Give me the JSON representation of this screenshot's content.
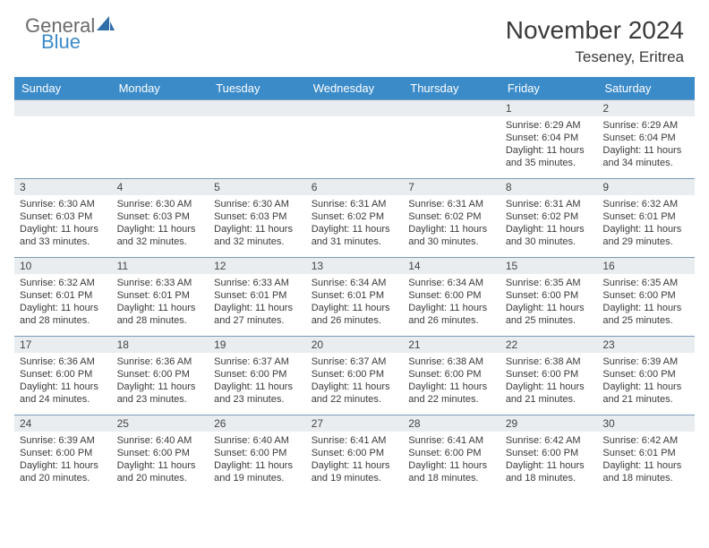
{
  "logo": {
    "top": "General",
    "bottom": "Blue",
    "sail_color": "#2f6ea8"
  },
  "title": "November 2024",
  "location": "Teseney, Eritrea",
  "day_headers": [
    "Sunday",
    "Monday",
    "Tuesday",
    "Wednesday",
    "Thursday",
    "Friday",
    "Saturday"
  ],
  "header_bg": "#3b8bc9",
  "weeks": [
    {
      "nums": [
        "",
        "",
        "",
        "",
        "",
        "1",
        "2"
      ],
      "cells": [
        null,
        null,
        null,
        null,
        null,
        {
          "sr": "6:29 AM",
          "ss": "6:04 PM",
          "dl": "11 hours and 35 minutes."
        },
        {
          "sr": "6:29 AM",
          "ss": "6:04 PM",
          "dl": "11 hours and 34 minutes."
        }
      ]
    },
    {
      "nums": [
        "3",
        "4",
        "5",
        "6",
        "7",
        "8",
        "9"
      ],
      "cells": [
        {
          "sr": "6:30 AM",
          "ss": "6:03 PM",
          "dl": "11 hours and 33 minutes."
        },
        {
          "sr": "6:30 AM",
          "ss": "6:03 PM",
          "dl": "11 hours and 32 minutes."
        },
        {
          "sr": "6:30 AM",
          "ss": "6:03 PM",
          "dl": "11 hours and 32 minutes."
        },
        {
          "sr": "6:31 AM",
          "ss": "6:02 PM",
          "dl": "11 hours and 31 minutes."
        },
        {
          "sr": "6:31 AM",
          "ss": "6:02 PM",
          "dl": "11 hours and 30 minutes."
        },
        {
          "sr": "6:31 AM",
          "ss": "6:02 PM",
          "dl": "11 hours and 30 minutes."
        },
        {
          "sr": "6:32 AM",
          "ss": "6:01 PM",
          "dl": "11 hours and 29 minutes."
        }
      ]
    },
    {
      "nums": [
        "10",
        "11",
        "12",
        "13",
        "14",
        "15",
        "16"
      ],
      "cells": [
        {
          "sr": "6:32 AM",
          "ss": "6:01 PM",
          "dl": "11 hours and 28 minutes."
        },
        {
          "sr": "6:33 AM",
          "ss": "6:01 PM",
          "dl": "11 hours and 28 minutes."
        },
        {
          "sr": "6:33 AM",
          "ss": "6:01 PM",
          "dl": "11 hours and 27 minutes."
        },
        {
          "sr": "6:34 AM",
          "ss": "6:01 PM",
          "dl": "11 hours and 26 minutes."
        },
        {
          "sr": "6:34 AM",
          "ss": "6:00 PM",
          "dl": "11 hours and 26 minutes."
        },
        {
          "sr": "6:35 AM",
          "ss": "6:00 PM",
          "dl": "11 hours and 25 minutes."
        },
        {
          "sr": "6:35 AM",
          "ss": "6:00 PM",
          "dl": "11 hours and 25 minutes."
        }
      ]
    },
    {
      "nums": [
        "17",
        "18",
        "19",
        "20",
        "21",
        "22",
        "23"
      ],
      "cells": [
        {
          "sr": "6:36 AM",
          "ss": "6:00 PM",
          "dl": "11 hours and 24 minutes."
        },
        {
          "sr": "6:36 AM",
          "ss": "6:00 PM",
          "dl": "11 hours and 23 minutes."
        },
        {
          "sr": "6:37 AM",
          "ss": "6:00 PM",
          "dl": "11 hours and 23 minutes."
        },
        {
          "sr": "6:37 AM",
          "ss": "6:00 PM",
          "dl": "11 hours and 22 minutes."
        },
        {
          "sr": "6:38 AM",
          "ss": "6:00 PM",
          "dl": "11 hours and 22 minutes."
        },
        {
          "sr": "6:38 AM",
          "ss": "6:00 PM",
          "dl": "11 hours and 21 minutes."
        },
        {
          "sr": "6:39 AM",
          "ss": "6:00 PM",
          "dl": "11 hours and 21 minutes."
        }
      ]
    },
    {
      "nums": [
        "24",
        "25",
        "26",
        "27",
        "28",
        "29",
        "30"
      ],
      "cells": [
        {
          "sr": "6:39 AM",
          "ss": "6:00 PM",
          "dl": "11 hours and 20 minutes."
        },
        {
          "sr": "6:40 AM",
          "ss": "6:00 PM",
          "dl": "11 hours and 20 minutes."
        },
        {
          "sr": "6:40 AM",
          "ss": "6:00 PM",
          "dl": "11 hours and 19 minutes."
        },
        {
          "sr": "6:41 AM",
          "ss": "6:00 PM",
          "dl": "11 hours and 19 minutes."
        },
        {
          "sr": "6:41 AM",
          "ss": "6:00 PM",
          "dl": "11 hours and 18 minutes."
        },
        {
          "sr": "6:42 AM",
          "ss": "6:00 PM",
          "dl": "11 hours and 18 minutes."
        },
        {
          "sr": "6:42 AM",
          "ss": "6:01 PM",
          "dl": "11 hours and 18 minutes."
        }
      ]
    }
  ]
}
